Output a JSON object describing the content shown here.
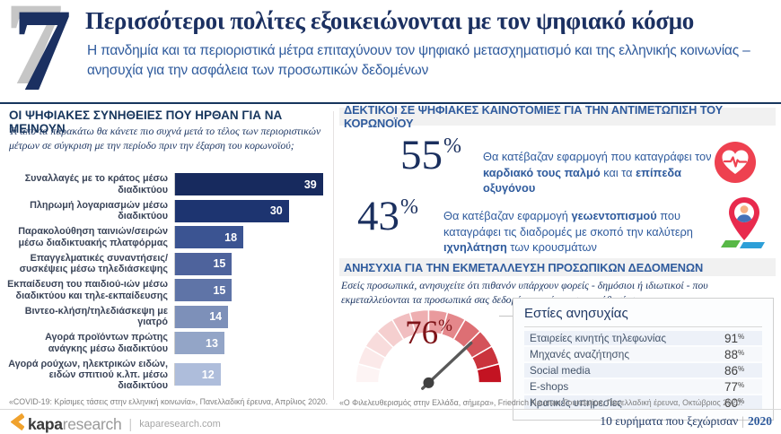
{
  "header": {
    "number": "7",
    "title": "Περισσότεροι πολίτες εξοικειώνονται με τον ψηφιακό κόσμο",
    "subtitle": "Η πανδημία και τα περιοριστικά μέτρα επιταχύνουν τον ψηφιακό μετασχηματισμό και της ελληνικής κοινωνίας – ανησυχία για την ασφάλεια των προσωπικών δεδομένων"
  },
  "colors": {
    "accent_navy": "#1b3061",
    "accent_blue": "#2f5b9d",
    "gauge_red": "#7e1318",
    "logo_orange": "#f0a22e"
  },
  "left_section": {
    "title": "ΟΙ ΨΗΦΙΑΚΕΣ ΣΥΝΗΘΕΙΕΣ ΠΟΥ ΗΡΘΑΝ ΓΙΑ ΝΑ ΜΕΙΝΟΥΝ",
    "question": "Τι από τα παρακάτω θα κάνετε πιο συχνά μετά το τέλος των περιοριστικών μέτρων σε σύγκριση με την περίοδο πριν την έξαρση του κορωνοϊού;",
    "footnote": "«COVID-19: Κρίσιμες τάσεις στην ελληνική κοινωνία», Πανελλαδική έρευνα, Απρίλιος 2020."
  },
  "right_top": {
    "title": "ΔΕΚΤΙΚΟΙ ΣΕ ΨΗΦΙΑΚΕΣ ΚΑΙΝΟΤΟΜΙΕΣ ΓΙΑ ΤΗΝ ΑΝΤΙΜΕΤΩΠΙΣΗ ΤΟΥ ΚΟΡΩΝΟΪΟΥ",
    "stats": [
      {
        "value": "55",
        "unit": "%",
        "text_pre": "Θα κατέβαζαν εφαρμογή που καταγράφει τον ",
        "text_bold1": "καρδιακό τους παλμό",
        "text_mid": " και τα ",
        "text_bold2": "επίπεδα οξυγόνου",
        "text_post": "",
        "icon": "heart-rate-icon"
      },
      {
        "value": "43",
        "unit": "%",
        "text_pre": "Θα κατέβαζαν εφαρμογή ",
        "text_bold1": "γεωεντοπισμού",
        "text_mid": " που καταγράφει τις διαδρομές με σκοπό την καλύτερη ",
        "text_bold2": "ιχνηλάτηση",
        "text_post": " των κρουσμάτων",
        "icon": "location-pin-icon"
      }
    ]
  },
  "right_bottom": {
    "title": "ΑΝΗΣΥΧΙΑ ΓΙΑ ΤΗΝ ΕΚΜΕΤΑΛΛΕΥΣΗ ΠΡΟΣΩΠΙΚΩΝ ΔΕΔΟΜΕΝΩΝ",
    "question": "Εσείς προσωπικά, ανησυχείτε ότι πιθανόν υπάρχουν φορείς - δημόσιοι ή ιδιωτικοί - που εκμεταλλεύονται τα προσωπικά σας δεδομένα χωρίς τη συγκατάθεσή σας;",
    "footnote": "«Ο Φιλελευθερισμός στην Ελλάδα, σήμερα», Friedrich Nauman Foundation, Πανελλαδική έρευνα, Οκτώβριος 2020."
  },
  "chart_data": [
    {
      "type": "bar",
      "orientation": "horizontal",
      "title": "ΟΙ ΨΗΦΙΑΚΕΣ ΣΥΝΗΘΕΙΕΣ ΠΟΥ ΗΡΘΑΝ ΓΙΑ ΝΑ ΜΕΙΝΟΥΝ",
      "categories": [
        "Συναλλαγές με το κράτος μέσω διαδικτύου",
        "Πληρωμή λογαριασμών μέσω διαδικτύου",
        "Παρακολούθηση ταινιών/σειρών μέσω διαδικτυακής πλατφόρμας",
        "Επαγγελματικές συναντήσεις/συσκέψεις μέσω τηλεδιάσκεψης",
        "Εκπαίδευση του παιδιού-ιών μέσω διαδικτύου και τηλε-εκπαίδευσης",
        "Βιντεο-κλήση/τηλεδιάσκεψη με γιατρό",
        "Αγορά προϊόντων πρώτης ανάγκης μέσω διαδικτύου",
        "Αγορά ρούχων, ηλεκτρικών ειδών, ειδών σπιτιού κ.λπ. μέσω διαδικτύου"
      ],
      "values": [
        39,
        30,
        18,
        15,
        15,
        14,
        13,
        12
      ],
      "bar_colors": [
        "#172a5e",
        "#1d3470",
        "#3b5492",
        "#4e639c",
        "#5f74a7",
        "#7d90b9",
        "#93a5c7",
        "#aebddb"
      ],
      "xlim": [
        0,
        40
      ],
      "value_labels_inside": true
    },
    {
      "type": "gauge",
      "value": 76,
      "max": 100,
      "unit": "%",
      "segment_colors": [
        "#fdf4f4",
        "#fbe9e9",
        "#f8dcdc",
        "#f5cfcf",
        "#f1bec0",
        "#eeafb1",
        "#e99a9d",
        "#e4878b",
        "#dd6f74",
        "#d4535a",
        "#ca333c",
        "#c31322"
      ]
    },
    {
      "type": "table",
      "title": "Εστίες ανησυχίας",
      "unit": "%",
      "rows": [
        {
          "label": "Εταιρείες κινητής τηλεφωνίας",
          "value": 91
        },
        {
          "label": "Μηχανές αναζήτησης",
          "value": 88
        },
        {
          "label": "Social media",
          "value": 86
        },
        {
          "label": "E-shops",
          "value": 77
        },
        {
          "label": "Κρατικές υπηρεσίες",
          "value": 60
        }
      ]
    }
  ],
  "footer": {
    "logo_kapa": "kapa",
    "logo_research": "research",
    "domain": "kaparesearch.com",
    "right_text": "10 ευρήματα που ξεχώρισαν",
    "separator": "|",
    "year": "2020"
  }
}
